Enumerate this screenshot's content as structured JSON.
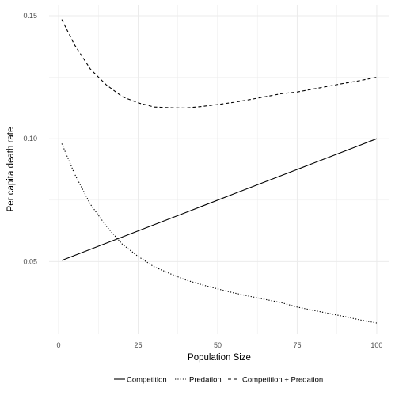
{
  "chart_data": {
    "type": "line",
    "title": "",
    "xlabel": "Population Size",
    "ylabel": "Per capita death rate",
    "xlim": [
      -3,
      104
    ],
    "ylim": [
      0.0205,
      0.1545
    ],
    "x_ticks": [
      0,
      25,
      50,
      75,
      100
    ],
    "x_tick_labels": [
      "0",
      "25",
      "50",
      "75",
      "100"
    ],
    "y_ticks": [
      0.05,
      0.1,
      0.15
    ],
    "y_tick_labels": [
      "0.05",
      "0.10",
      "0.15"
    ],
    "grid": true,
    "legend_position": "bottom",
    "colors": {
      "line": "#000000",
      "grid": "#ebebeb",
      "background": "#ffffff"
    },
    "series": [
      {
        "name": "Competition",
        "linestyle": "solid",
        "x": [
          1,
          5,
          10,
          15,
          20,
          25,
          30,
          35,
          40,
          45,
          50,
          55,
          60,
          65,
          70,
          75,
          80,
          85,
          90,
          95,
          100
        ],
        "y": [
          0.0505,
          0.0525,
          0.055,
          0.0575,
          0.06,
          0.0625,
          0.065,
          0.0675,
          0.07,
          0.0725,
          0.075,
          0.0775,
          0.08,
          0.0825,
          0.085,
          0.0875,
          0.09,
          0.0925,
          0.095,
          0.0975,
          0.1
        ]
      },
      {
        "name": "Predation",
        "linestyle": "dotted",
        "x": [
          1,
          5,
          10,
          15,
          20,
          25,
          30,
          35,
          40,
          45,
          50,
          55,
          60,
          65,
          70,
          75,
          80,
          85,
          90,
          95,
          100
        ],
        "y": [
          0.098,
          0.0857,
          0.0733,
          0.0644,
          0.0571,
          0.0521,
          0.0479,
          0.0451,
          0.0425,
          0.0406,
          0.0389,
          0.0373,
          0.0359,
          0.0346,
          0.0333,
          0.0315,
          0.0302,
          0.0289,
          0.0276,
          0.0262,
          0.025
        ]
      },
      {
        "name": "Competition + Predation",
        "linestyle": "dashed",
        "x": [
          1,
          5,
          10,
          15,
          20,
          25,
          30,
          35,
          40,
          45,
          50,
          55,
          60,
          65,
          70,
          75,
          80,
          85,
          90,
          95,
          100
        ],
        "y": [
          0.1485,
          0.1382,
          0.1283,
          0.1219,
          0.1171,
          0.1146,
          0.1129,
          0.1126,
          0.1125,
          0.1131,
          0.1139,
          0.1148,
          0.1159,
          0.1171,
          0.1183,
          0.119,
          0.1202,
          0.1214,
          0.1226,
          0.1237,
          0.125
        ]
      }
    ]
  }
}
